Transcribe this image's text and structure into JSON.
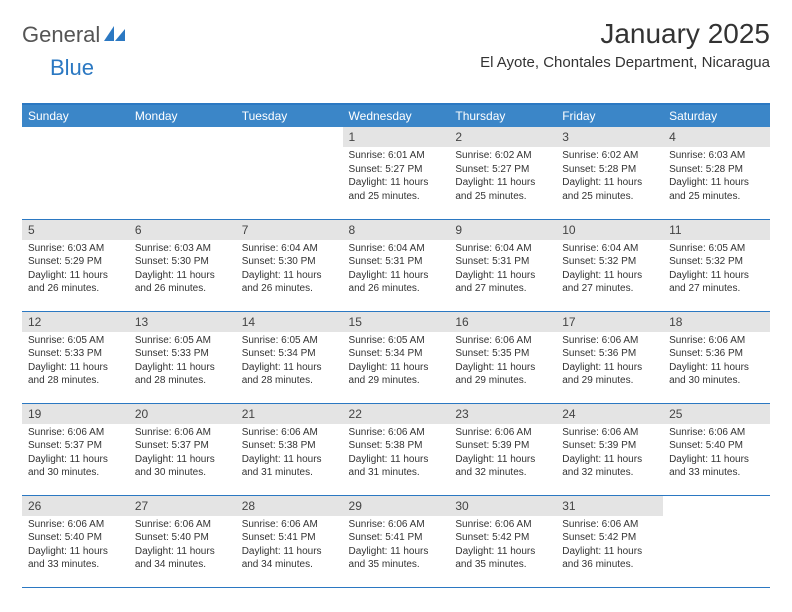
{
  "logo": {
    "general": "General",
    "blue": "Blue"
  },
  "title": "January 2025",
  "location": "El Ayote, Chontales Department, Nicaragua",
  "colors": {
    "header_bg": "#3b86c8",
    "header_text": "#ffffff",
    "border": "#2b78c2",
    "daynum_bg": "#e4e4e4",
    "text": "#333333"
  },
  "weekdays": [
    "Sunday",
    "Monday",
    "Tuesday",
    "Wednesday",
    "Thursday",
    "Friday",
    "Saturday"
  ],
  "weeks": [
    [
      null,
      null,
      null,
      {
        "n": "1",
        "sr": "6:01 AM",
        "ss": "5:27 PM",
        "dl": "11 hours and 25 minutes."
      },
      {
        "n": "2",
        "sr": "6:02 AM",
        "ss": "5:27 PM",
        "dl": "11 hours and 25 minutes."
      },
      {
        "n": "3",
        "sr": "6:02 AM",
        "ss": "5:28 PM",
        "dl": "11 hours and 25 minutes."
      },
      {
        "n": "4",
        "sr": "6:03 AM",
        "ss": "5:28 PM",
        "dl": "11 hours and 25 minutes."
      }
    ],
    [
      {
        "n": "5",
        "sr": "6:03 AM",
        "ss": "5:29 PM",
        "dl": "11 hours and 26 minutes."
      },
      {
        "n": "6",
        "sr": "6:03 AM",
        "ss": "5:30 PM",
        "dl": "11 hours and 26 minutes."
      },
      {
        "n": "7",
        "sr": "6:04 AM",
        "ss": "5:30 PM",
        "dl": "11 hours and 26 minutes."
      },
      {
        "n": "8",
        "sr": "6:04 AM",
        "ss": "5:31 PM",
        "dl": "11 hours and 26 minutes."
      },
      {
        "n": "9",
        "sr": "6:04 AM",
        "ss": "5:31 PM",
        "dl": "11 hours and 27 minutes."
      },
      {
        "n": "10",
        "sr": "6:04 AM",
        "ss": "5:32 PM",
        "dl": "11 hours and 27 minutes."
      },
      {
        "n": "11",
        "sr": "6:05 AM",
        "ss": "5:32 PM",
        "dl": "11 hours and 27 minutes."
      }
    ],
    [
      {
        "n": "12",
        "sr": "6:05 AM",
        "ss": "5:33 PM",
        "dl": "11 hours and 28 minutes."
      },
      {
        "n": "13",
        "sr": "6:05 AM",
        "ss": "5:33 PM",
        "dl": "11 hours and 28 minutes."
      },
      {
        "n": "14",
        "sr": "6:05 AM",
        "ss": "5:34 PM",
        "dl": "11 hours and 28 minutes."
      },
      {
        "n": "15",
        "sr": "6:05 AM",
        "ss": "5:34 PM",
        "dl": "11 hours and 29 minutes."
      },
      {
        "n": "16",
        "sr": "6:06 AM",
        "ss": "5:35 PM",
        "dl": "11 hours and 29 minutes."
      },
      {
        "n": "17",
        "sr": "6:06 AM",
        "ss": "5:36 PM",
        "dl": "11 hours and 29 minutes."
      },
      {
        "n": "18",
        "sr": "6:06 AM",
        "ss": "5:36 PM",
        "dl": "11 hours and 30 minutes."
      }
    ],
    [
      {
        "n": "19",
        "sr": "6:06 AM",
        "ss": "5:37 PM",
        "dl": "11 hours and 30 minutes."
      },
      {
        "n": "20",
        "sr": "6:06 AM",
        "ss": "5:37 PM",
        "dl": "11 hours and 30 minutes."
      },
      {
        "n": "21",
        "sr": "6:06 AM",
        "ss": "5:38 PM",
        "dl": "11 hours and 31 minutes."
      },
      {
        "n": "22",
        "sr": "6:06 AM",
        "ss": "5:38 PM",
        "dl": "11 hours and 31 minutes."
      },
      {
        "n": "23",
        "sr": "6:06 AM",
        "ss": "5:39 PM",
        "dl": "11 hours and 32 minutes."
      },
      {
        "n": "24",
        "sr": "6:06 AM",
        "ss": "5:39 PM",
        "dl": "11 hours and 32 minutes."
      },
      {
        "n": "25",
        "sr": "6:06 AM",
        "ss": "5:40 PM",
        "dl": "11 hours and 33 minutes."
      }
    ],
    [
      {
        "n": "26",
        "sr": "6:06 AM",
        "ss": "5:40 PM",
        "dl": "11 hours and 33 minutes."
      },
      {
        "n": "27",
        "sr": "6:06 AM",
        "ss": "5:40 PM",
        "dl": "11 hours and 34 minutes."
      },
      {
        "n": "28",
        "sr": "6:06 AM",
        "ss": "5:41 PM",
        "dl": "11 hours and 34 minutes."
      },
      {
        "n": "29",
        "sr": "6:06 AM",
        "ss": "5:41 PM",
        "dl": "11 hours and 35 minutes."
      },
      {
        "n": "30",
        "sr": "6:06 AM",
        "ss": "5:42 PM",
        "dl": "11 hours and 35 minutes."
      },
      {
        "n": "31",
        "sr": "6:06 AM",
        "ss": "5:42 PM",
        "dl": "11 hours and 36 minutes."
      },
      null
    ]
  ],
  "labels": {
    "sunrise": "Sunrise:",
    "sunset": "Sunset:",
    "daylight": "Daylight:"
  }
}
